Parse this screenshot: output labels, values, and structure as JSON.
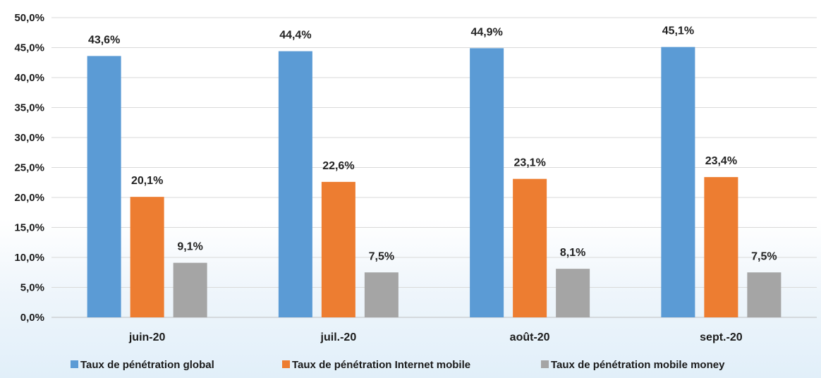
{
  "chart_data": {
    "type": "bar",
    "title": "",
    "xlabel": "",
    "ylabel": "",
    "categories": [
      "juin-20",
      "juil.-20",
      "août-20",
      "sept.-20"
    ],
    "series": [
      {
        "name": "Taux de pénétration global",
        "color": "#5b9bd5",
        "values": [
          43.6,
          44.4,
          44.9,
          45.1
        ],
        "labels": [
          "43,6%",
          "44,4%",
          "44,9%",
          "45,1%"
        ]
      },
      {
        "name": "Taux de pénétration Internet mobile",
        "color": "#ed7d31",
        "values": [
          20.1,
          22.6,
          23.1,
          23.4
        ],
        "labels": [
          "20,1%",
          "22,6%",
          "23,1%",
          "23,4%"
        ]
      },
      {
        "name": "Taux de pénétration mobile money",
        "color": "#a5a5a5",
        "values": [
          9.1,
          7.5,
          8.1,
          7.5
        ],
        "labels": [
          "9,1%",
          "7,5%",
          "8,1%",
          "7,5%"
        ]
      }
    ],
    "ylim": [
      0,
      50
    ],
    "y_ticks": [
      0,
      5,
      10,
      15,
      20,
      25,
      30,
      35,
      40,
      45,
      50
    ],
    "y_tick_labels": [
      "0,0%",
      "5,0%",
      "10,0%",
      "15,0%",
      "20,0%",
      "25,0%",
      "30,0%",
      "35,0%",
      "40,0%",
      "45,0%",
      "50,0%"
    ],
    "grid": true,
    "legend": "bottom",
    "colors": {
      "gridline": "#d9d9d9",
      "axis": "#bfbfbf"
    }
  }
}
